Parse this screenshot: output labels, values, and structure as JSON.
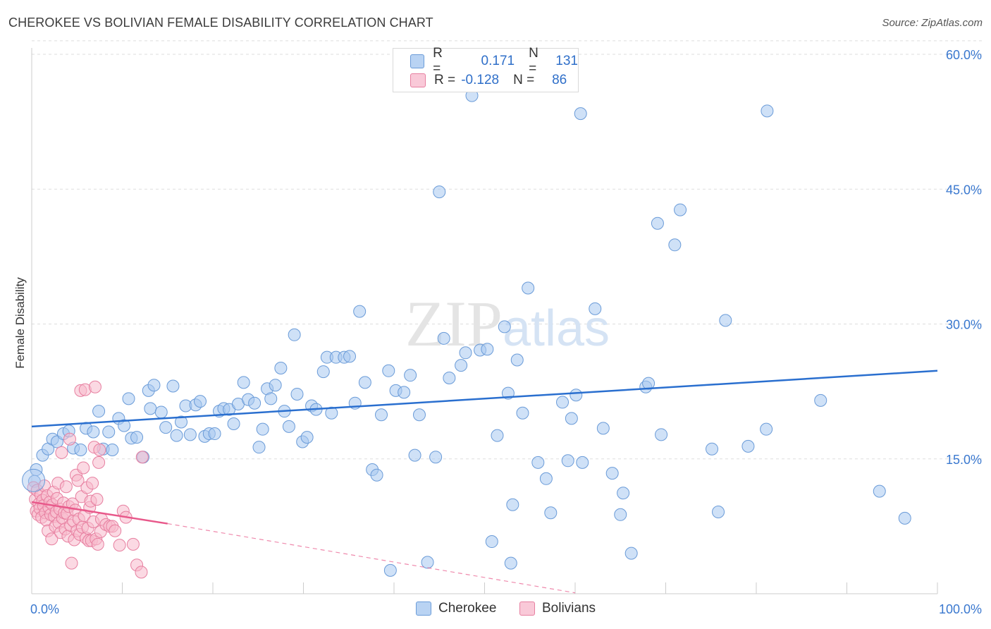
{
  "title": "CHEROKEE VS BOLIVIAN FEMALE DISABILITY CORRELATION CHART",
  "source": "Source: ZipAtlas.com",
  "watermark": "ZIPatlas",
  "legend": {
    "rows": [
      {
        "r_label": "R =",
        "r_value": "0.171",
        "n_label": "N =",
        "n_value": "131",
        "color": "#a8c8f0",
        "border": "#6a9bd8"
      },
      {
        "r_label": "R =",
        "r_value": "-0.128",
        "n_label": "N =",
        "n_value": "86",
        "color": "#f7b9cc",
        "border": "#e77fa0"
      }
    ]
  },
  "bottom_legend": [
    {
      "label": "Cherokee",
      "color": "#a8c8f0",
      "border": "#6a9bd8"
    },
    {
      "label": "Bolivians",
      "color": "#f7b9cc",
      "border": "#e77fa0"
    }
  ],
  "chart_data": {
    "type": "scatter",
    "title": "CHEROKEE VS BOLIVIAN FEMALE DISABILITY CORRELATION CHART",
    "xlabel": "",
    "ylabel": "Female Disability",
    "xlim": [
      0,
      100
    ],
    "ylim": [
      0,
      62
    ],
    "x_tick_labels": [
      "0.0%",
      "100.0%"
    ],
    "y_ticks": [
      15,
      30,
      45,
      60
    ],
    "y_tick_labels": [
      "15.0%",
      "30.0%",
      "45.0%",
      "60.0%"
    ],
    "grid": true,
    "legend_position": "top-center",
    "series": [
      {
        "name": "Cherokee",
        "color": "#6a9bd8",
        "fill": "#a8c8f0",
        "trend": {
          "x": [
            0,
            100
          ],
          "y": [
            18.6,
            24.8
          ],
          "style": "solid",
          "color": "#2a6fcf"
        },
        "points": [
          [
            0.5,
            13.8
          ],
          [
            1.2,
            15.4
          ],
          [
            1.8,
            16.1
          ],
          [
            2.3,
            17.2
          ],
          [
            2.8,
            16.9
          ],
          [
            3.5,
            17.8
          ],
          [
            4.1,
            18.1
          ],
          [
            4.6,
            16.2
          ],
          [
            5.4,
            16.0
          ],
          [
            6.0,
            18.4
          ],
          [
            6.8,
            18.0
          ],
          [
            7.4,
            20.3
          ],
          [
            7.9,
            16.1
          ],
          [
            8.5,
            18.0
          ],
          [
            8.9,
            16.0
          ],
          [
            9.6,
            19.5
          ],
          [
            10.2,
            18.7
          ],
          [
            10.7,
            21.7
          ],
          [
            11.0,
            17.3
          ],
          [
            11.6,
            17.4
          ],
          [
            12.3,
            15.2
          ],
          [
            12.9,
            22.6
          ],
          [
            13.1,
            20.6
          ],
          [
            13.5,
            23.2
          ],
          [
            14.3,
            20.2
          ],
          [
            14.8,
            18.5
          ],
          [
            15.6,
            23.1
          ],
          [
            16.0,
            17.6
          ],
          [
            16.5,
            19.1
          ],
          [
            17.0,
            20.9
          ],
          [
            17.5,
            17.7
          ],
          [
            18.1,
            21.0
          ],
          [
            18.6,
            21.4
          ],
          [
            19.1,
            17.5
          ],
          [
            19.6,
            17.8
          ],
          [
            20.2,
            17.8
          ],
          [
            20.7,
            20.3
          ],
          [
            21.2,
            20.6
          ],
          [
            21.8,
            20.5
          ],
          [
            22.3,
            18.9
          ],
          [
            22.8,
            21.1
          ],
          [
            23.4,
            23.5
          ],
          [
            23.9,
            21.6
          ],
          [
            24.6,
            21.2
          ],
          [
            25.1,
            16.3
          ],
          [
            25.5,
            18.3
          ],
          [
            26.0,
            22.8
          ],
          [
            26.4,
            21.7
          ],
          [
            26.9,
            23.2
          ],
          [
            27.5,
            25.1
          ],
          [
            27.9,
            20.3
          ],
          [
            28.4,
            18.6
          ],
          [
            29.0,
            28.8
          ],
          [
            29.3,
            22.2
          ],
          [
            29.9,
            16.9
          ],
          [
            30.4,
            17.4
          ],
          [
            30.9,
            20.9
          ],
          [
            31.4,
            20.5
          ],
          [
            32.2,
            24.7
          ],
          [
            32.6,
            26.3
          ],
          [
            33.1,
            20.1
          ],
          [
            33.6,
            26.3
          ],
          [
            34.5,
            26.3
          ],
          [
            35.1,
            26.4
          ],
          [
            35.7,
            21.2
          ],
          [
            36.2,
            31.4
          ],
          [
            36.8,
            23.5
          ],
          [
            37.6,
            13.8
          ],
          [
            38.1,
            13.2
          ],
          [
            38.6,
            19.9
          ],
          [
            39.4,
            24.8
          ],
          [
            40.2,
            22.6
          ],
          [
            41.1,
            22.4
          ],
          [
            41.8,
            24.3
          ],
          [
            42.3,
            15.4
          ],
          [
            42.8,
            19.9
          ],
          [
            44.6,
            15.2
          ],
          [
            45.0,
            44.7
          ],
          [
            45.5,
            28.4
          ],
          [
            46.1,
            24.0
          ],
          [
            47.4,
            25.4
          ],
          [
            47.9,
            26.8
          ],
          [
            48.6,
            55.4
          ],
          [
            49.5,
            27.1
          ],
          [
            50.3,
            27.2
          ],
          [
            50.8,
            5.8
          ],
          [
            51.4,
            17.6
          ],
          [
            52.2,
            29.7
          ],
          [
            52.6,
            22.3
          ],
          [
            53.1,
            9.9
          ],
          [
            53.6,
            26.0
          ],
          [
            54.2,
            20.1
          ],
          [
            54.8,
            34.0
          ],
          [
            55.9,
            14.6
          ],
          [
            56.8,
            12.8
          ],
          [
            57.3,
            9.0
          ],
          [
            58.6,
            21.3
          ],
          [
            59.2,
            14.8
          ],
          [
            59.6,
            19.5
          ],
          [
            60.1,
            22.1
          ],
          [
            60.6,
            53.4
          ],
          [
            60.8,
            14.6
          ],
          [
            62.2,
            31.7
          ],
          [
            63.1,
            18.4
          ],
          [
            64.1,
            13.4
          ],
          [
            65.0,
            8.8
          ],
          [
            65.3,
            11.2
          ],
          [
            66.2,
            4.5
          ],
          [
            67.8,
            23.0
          ],
          [
            68.1,
            23.4
          ],
          [
            69.1,
            41.2
          ],
          [
            69.5,
            17.7
          ],
          [
            71.0,
            38.8
          ],
          [
            71.6,
            42.7
          ],
          [
            75.1,
            16.1
          ],
          [
            75.8,
            9.1
          ],
          [
            76.6,
            30.4
          ],
          [
            79.1,
            16.4
          ],
          [
            81.1,
            18.3
          ],
          [
            81.2,
            53.7
          ],
          [
            87.1,
            21.5
          ],
          [
            93.6,
            11.4
          ],
          [
            96.4,
            8.4
          ],
          [
            0.3,
            12.5
          ],
          [
            39.6,
            2.6
          ],
          [
            43.7,
            3.5
          ],
          [
            52.9,
            3.4
          ]
        ]
      },
      {
        "name": "Bolivians",
        "color": "#e77fa0",
        "fill": "#f7b9cc",
        "trend": {
          "x": [
            0,
            15
          ],
          "y": [
            10.2,
            7.8
          ],
          "style": "solid",
          "color": "#e8588a",
          "dashed_extension": {
            "x": [
              15,
              60
            ],
            "y": [
              7.8,
              0.1
            ]
          }
        },
        "points": [
          [
            0.2,
            11.8
          ],
          [
            0.4,
            10.5
          ],
          [
            0.5,
            9.2
          ],
          [
            0.6,
            11.5
          ],
          [
            0.7,
            8.8
          ],
          [
            0.8,
            10.0
          ],
          [
            0.9,
            9.5
          ],
          [
            1.0,
            11.0
          ],
          [
            1.1,
            8.5
          ],
          [
            1.2,
            10.4
          ],
          [
            1.3,
            9.8
          ],
          [
            1.4,
            12.0
          ],
          [
            1.5,
            9.0
          ],
          [
            1.6,
            8.2
          ],
          [
            1.7,
            10.9
          ],
          [
            1.8,
            7.0
          ],
          [
            1.9,
            9.6
          ],
          [
            2.0,
            10.2
          ],
          [
            2.1,
            8.8
          ],
          [
            2.2,
            6.1
          ],
          [
            2.3,
            9.9
          ],
          [
            2.4,
            11.3
          ],
          [
            2.5,
            8.6
          ],
          [
            2.6,
            7.5
          ],
          [
            2.7,
            9.1
          ],
          [
            2.8,
            10.6
          ],
          [
            2.9,
            12.3
          ],
          [
            3.0,
            7.9
          ],
          [
            3.1,
            9.4
          ],
          [
            3.2,
            6.8
          ],
          [
            3.3,
            15.7
          ],
          [
            3.4,
            8.4
          ],
          [
            3.5,
            10.1
          ],
          [
            3.6,
            9.0
          ],
          [
            3.7,
            7.2
          ],
          [
            3.8,
            11.9
          ],
          [
            3.9,
            8.9
          ],
          [
            4.0,
            6.4
          ],
          [
            4.1,
            9.7
          ],
          [
            4.2,
            17.2
          ],
          [
            4.3,
            7.6
          ],
          [
            4.4,
            3.4
          ],
          [
            4.5,
            10.0
          ],
          [
            4.6,
            8.1
          ],
          [
            4.7,
            6.0
          ],
          [
            4.8,
            9.3
          ],
          [
            4.9,
            13.2
          ],
          [
            5.0,
            7.0
          ],
          [
            5.1,
            12.6
          ],
          [
            5.2,
            8.3
          ],
          [
            5.3,
            6.6
          ],
          [
            5.4,
            22.6
          ],
          [
            5.5,
            10.8
          ],
          [
            5.6,
            7.4
          ],
          [
            5.7,
            14.0
          ],
          [
            5.8,
            8.7
          ],
          [
            5.9,
            22.7
          ],
          [
            6.0,
            6.2
          ],
          [
            6.1,
            11.8
          ],
          [
            6.2,
            7.3
          ],
          [
            6.3,
            5.9
          ],
          [
            6.4,
            9.6
          ],
          [
            6.5,
            10.3
          ],
          [
            6.6,
            5.9
          ],
          [
            6.7,
            12.3
          ],
          [
            6.8,
            8.0
          ],
          [
            6.9,
            16.3
          ],
          [
            7.0,
            23.0
          ],
          [
            7.1,
            6.1
          ],
          [
            7.2,
            10.5
          ],
          [
            7.3,
            5.5
          ],
          [
            7.4,
            14.6
          ],
          [
            7.5,
            16.0
          ],
          [
            7.6,
            6.9
          ],
          [
            7.7,
            8.3
          ],
          [
            8.2,
            7.7
          ],
          [
            8.6,
            7.5
          ],
          [
            8.9,
            7.5
          ],
          [
            9.2,
            7.0
          ],
          [
            9.7,
            5.4
          ],
          [
            10.1,
            9.2
          ],
          [
            10.4,
            8.5
          ],
          [
            11.2,
            5.5
          ],
          [
            11.6,
            3.2
          ],
          [
            12.1,
            2.4
          ],
          [
            12.2,
            15.2
          ]
        ]
      }
    ]
  }
}
